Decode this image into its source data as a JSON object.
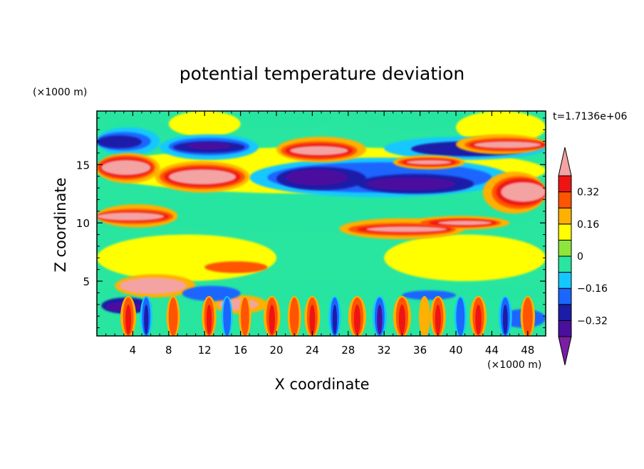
{
  "chart_data": {
    "type": "heatmap",
    "title": "potential temperature deviation",
    "xlabel": "X coordinate",
    "ylabel": "Z coordinate",
    "x_unit": "(×1000 m)",
    "y_unit": "(×1000 m)",
    "time_label": "t=1.7136e+06",
    "xlim": [
      0,
      50
    ],
    "ylim": [
      0.3,
      19.6
    ],
    "x_ticks": [
      4,
      8,
      12,
      16,
      20,
      24,
      28,
      32,
      36,
      40,
      44,
      48
    ],
    "x_tick_labels": [
      "4",
      "8",
      "12",
      "16",
      "20",
      "24",
      "28",
      "32",
      "36",
      "40",
      "44",
      "48"
    ],
    "y_ticks": [
      5,
      10,
      15
    ],
    "y_tick_labels": [
      "5",
      "10",
      "15"
    ],
    "colorbar": {
      "levels": [
        -0.4,
        -0.32,
        -0.24,
        -0.16,
        -0.08,
        0,
        0.08,
        0.16,
        0.24,
        0.32,
        0.4
      ],
      "colors": [
        "#7a1fa2",
        "#4b0f9e",
        "#1c1ca8",
        "#1a66ff",
        "#14c8ff",
        "#28e5a0",
        "#8ee63a",
        "#ffff00",
        "#ffb000",
        "#ff5500",
        "#ee1414",
        "#f4a3a3"
      ],
      "labels": [
        "0.32",
        "0.16",
        "0",
        "−0.16",
        "−0.32"
      ],
      "label_values": [
        0.32,
        0.16,
        0,
        -0.16,
        -0.32
      ]
    },
    "base_color": "#28e5a0",
    "regions": [
      {
        "v": 0.08,
        "x0": 0,
        "x1": 50,
        "y0": 12.5,
        "y1": 16.5
      },
      {
        "v": 0.08,
        "x0": 0,
        "x1": 20,
        "y0": 5,
        "y1": 9
      },
      {
        "v": 0.08,
        "x0": 32,
        "x1": 50,
        "y0": 5,
        "y1": 9
      },
      {
        "v": -0.08,
        "x0": 0,
        "x1": 50,
        "y0": 9.3,
        "y1": 12.4
      },
      {
        "v": -0.08,
        "x0": 0,
        "x1": 8,
        "y0": 17,
        "y1": 18.8
      },
      {
        "v": -0.08,
        "x0": 16,
        "x1": 26,
        "y0": 18.2,
        "y1": 19.6
      },
      {
        "v": -0.08,
        "x0": 30,
        "x1": 43,
        "y0": 18.0,
        "y1": 19.6
      },
      {
        "v": 0.08,
        "x0": 8,
        "x1": 16,
        "y0": 17.4,
        "y1": 19.6
      },
      {
        "v": 0.08,
        "x0": 40,
        "x1": 50,
        "y0": 16.8,
        "y1": 19.6
      },
      {
        "v": -0.16,
        "x0": 17,
        "x1": 46,
        "y0": 12.2,
        "y1": 15.6
      },
      {
        "v": -0.16,
        "x0": 0,
        "x1": 7,
        "y0": 15.8,
        "y1": 18.2
      },
      {
        "v": -0.16,
        "x0": 7,
        "x1": 18,
        "y0": 15.4,
        "y1": 17.6
      },
      {
        "v": -0.16,
        "x0": 32,
        "x1": 50,
        "y0": 15.4,
        "y1": 17.4
      },
      {
        "v": -0.24,
        "x0": 19,
        "x1": 44,
        "y0": 12.6,
        "y1": 15.2
      },
      {
        "v": -0.24,
        "x0": 0,
        "x1": 6,
        "y0": 16.2,
        "y1": 17.8
      },
      {
        "v": -0.24,
        "x0": 8,
        "x1": 17,
        "y0": 15.8,
        "y1": 17.3
      },
      {
        "v": -0.32,
        "x0": 20,
        "x1": 30,
        "y0": 12.8,
        "y1": 14.8
      },
      {
        "v": -0.32,
        "x0": 29,
        "x1": 42,
        "y0": 12.5,
        "y1": 14.2
      },
      {
        "v": -0.32,
        "x0": 0,
        "x1": 5,
        "y0": 16.4,
        "y1": 17.5
      },
      {
        "v": -0.32,
        "x0": 8.5,
        "x1": 16.5,
        "y0": 16.0,
        "y1": 17.0
      },
      {
        "v": -0.32,
        "x0": 35,
        "x1": 48,
        "y0": 15.7,
        "y1": 17.0
      },
      {
        "v": -0.4,
        "x0": 21,
        "x1": 28,
        "y0": 13.2,
        "y1": 14.6
      },
      {
        "v": -0.4,
        "x0": 30,
        "x1": 40,
        "y0": 12.8,
        "y1": 13.9
      },
      {
        "v": -0.4,
        "x0": 10,
        "x1": 15,
        "y0": 16.3,
        "y1": 16.9
      },
      {
        "v": 0.16,
        "x0": 0,
        "x1": 7,
        "y0": 13.4,
        "y1": 16.0
      },
      {
        "v": 0.16,
        "x0": 6.5,
        "x1": 17,
        "y0": 12.6,
        "y1": 15.3
      },
      {
        "v": 0.16,
        "x0": 20,
        "x1": 30,
        "y0": 15.2,
        "y1": 17.4
      },
      {
        "v": 0.16,
        "x0": 33,
        "x1": 41,
        "y0": 14.6,
        "y1": 15.8
      },
      {
        "v": 0.16,
        "x0": 40,
        "x1": 50,
        "y0": 15.9,
        "y1": 17.6
      },
      {
        "v": 0.16,
        "x0": 43,
        "x1": 50,
        "y0": 10.8,
        "y1": 14.4
      },
      {
        "v": 0.16,
        "x0": 0,
        "x1": 9,
        "y0": 9.6,
        "y1": 11.6
      },
      {
        "v": 0.16,
        "x0": 27,
        "x1": 41,
        "y0": 8.6,
        "y1": 10.4
      },
      {
        "v": 0.16,
        "x0": 35,
        "x1": 46,
        "y0": 9.4,
        "y1": 10.6
      },
      {
        "v": 0.24,
        "x0": 0,
        "x1": 6.5,
        "y0": 13.7,
        "y1": 15.8
      },
      {
        "v": 0.24,
        "x0": 7,
        "x1": 16.5,
        "y0": 12.9,
        "y1": 15.0
      },
      {
        "v": 0.24,
        "x0": 20.5,
        "x1": 29,
        "y0": 15.4,
        "y1": 17.0
      },
      {
        "v": 0.24,
        "x0": 33.5,
        "x1": 40.5,
        "y0": 14.8,
        "y1": 15.6
      },
      {
        "v": 0.24,
        "x0": 41,
        "x1": 50,
        "y0": 16.1,
        "y1": 17.3
      },
      {
        "v": 0.24,
        "x0": 44,
        "x1": 50,
        "y0": 11.2,
        "y1": 14.0
      },
      {
        "v": 0.24,
        "x0": 0,
        "x1": 8.5,
        "y0": 9.9,
        "y1": 11.2
      },
      {
        "v": 0.24,
        "x0": 28,
        "x1": 40,
        "y0": 8.9,
        "y1": 10.0
      },
      {
        "v": 0.24,
        "x0": 36,
        "x1": 45,
        "y0": 9.6,
        "y1": 10.4
      },
      {
        "v": 0.32,
        "x0": 0.3,
        "x1": 6.2,
        "y0": 13.9,
        "y1": 15.6
      },
      {
        "v": 0.32,
        "x0": 7.5,
        "x1": 16,
        "y0": 13.1,
        "y1": 14.8
      },
      {
        "v": 0.32,
        "x0": 21,
        "x1": 28.5,
        "y0": 15.6,
        "y1": 16.8
      },
      {
        "v": 0.32,
        "x0": 34,
        "x1": 40,
        "y0": 14.9,
        "y1": 15.5
      },
      {
        "v": 0.32,
        "x0": 41.5,
        "x1": 50,
        "y0": 16.3,
        "y1": 17.1
      },
      {
        "v": 0.32,
        "x0": 44.5,
        "x1": 50,
        "y0": 11.5,
        "y1": 13.8
      },
      {
        "v": 0.32,
        "x0": 0,
        "x1": 8,
        "y0": 10.1,
        "y1": 11.0
      },
      {
        "v": 0.32,
        "x0": 29,
        "x1": 39.5,
        "y0": 9.1,
        "y1": 9.8
      },
      {
        "v": 0.32,
        "x0": 37,
        "x1": 44.5,
        "y0": 9.7,
        "y1": 10.3
      },
      {
        "v": 0.4,
        "x0": 0.5,
        "x1": 6,
        "y0": 14.1,
        "y1": 15.4
      },
      {
        "v": 0.4,
        "x0": 8,
        "x1": 15.5,
        "y0": 13.3,
        "y1": 14.6
      },
      {
        "v": 0.4,
        "x0": 21.5,
        "x1": 28,
        "y0": 15.8,
        "y1": 16.6
      },
      {
        "v": 0.4,
        "x0": 34.5,
        "x1": 39.5,
        "y0": 15.0,
        "y1": 15.4
      },
      {
        "v": 0.4,
        "x0": 42,
        "x1": 49.5,
        "y0": 16.4,
        "y1": 17.0
      },
      {
        "v": 0.4,
        "x0": 45,
        "x1": 50,
        "y0": 11.8,
        "y1": 13.5
      },
      {
        "v": 0.4,
        "x0": 0,
        "x1": 7.5,
        "y0": 10.2,
        "y1": 10.9
      },
      {
        "v": 0.4,
        "x0": 30,
        "x1": 39,
        "y0": 9.2,
        "y1": 9.7
      },
      {
        "v": 0.4,
        "x0": 38,
        "x1": 44,
        "y0": 9.8,
        "y1": 10.2
      },
      {
        "v": 0.4,
        "x0": 13,
        "x1": 18,
        "y0": 5.9,
        "y1": 6.5
      },
      {
        "v": 0.24,
        "x0": 12,
        "x1": 19,
        "y0": 5.7,
        "y1": 6.7
      },
      {
        "v": -0.08,
        "x0": 0,
        "x1": 50,
        "y0": 3.0,
        "y1": 5.0
      },
      {
        "v": 0.16,
        "x0": 2,
        "x1": 11,
        "y0": 3.6,
        "y1": 5.6
      },
      {
        "v": 0.4,
        "x0": 2.5,
        "x1": 10,
        "y0": 3.9,
        "y1": 5.3
      },
      {
        "v": 0.16,
        "x0": 13,
        "x1": 19,
        "y0": 2.2,
        "y1": 3.8
      },
      {
        "v": 0.4,
        "x0": 13.5,
        "x1": 18,
        "y0": 2.5,
        "y1": 3.5
      },
      {
        "v": -0.24,
        "x0": 9.5,
        "x1": 16,
        "y0": 3.3,
        "y1": 4.6
      },
      {
        "v": -0.32,
        "x0": 0.5,
        "x1": 6,
        "y0": 2.2,
        "y1": 3.6
      },
      {
        "v": -0.4,
        "x0": 1,
        "x1": 5,
        "y0": 2.4,
        "y1": 3.2
      },
      {
        "v": -0.24,
        "x0": 34,
        "x1": 40,
        "y0": 3.4,
        "y1": 4.2
      },
      {
        "v": -0.24,
        "x0": 45,
        "x1": 50,
        "y0": 1.0,
        "y1": 2.6
      }
    ],
    "plumes": [
      {
        "x": 3.5,
        "w": 1.4,
        "v": 0.32
      },
      {
        "x": 5.5,
        "w": 1.1,
        "v": -0.32
      },
      {
        "x": 8.5,
        "w": 1.2,
        "v": 0.24
      },
      {
        "x": 12.5,
        "w": 1.3,
        "v": 0.32
      },
      {
        "x": 14.5,
        "w": 1.0,
        "v": -0.24
      },
      {
        "x": 16.5,
        "w": 1.1,
        "v": 0.24
      },
      {
        "x": 19.5,
        "w": 1.5,
        "v": 0.32
      },
      {
        "x": 22,
        "w": 1.2,
        "v": 0.24
      },
      {
        "x": 24,
        "w": 1.4,
        "v": 0.32
      },
      {
        "x": 26.5,
        "w": 1.1,
        "v": -0.32
      },
      {
        "x": 29,
        "w": 1.6,
        "v": 0.32
      },
      {
        "x": 31.5,
        "w": 1.3,
        "v": -0.4
      },
      {
        "x": 34,
        "w": 1.6,
        "v": 0.32
      },
      {
        "x": 36.5,
        "w": 1.0,
        "v": 0.16
      },
      {
        "x": 38,
        "w": 1.4,
        "v": 0.32
      },
      {
        "x": 40.5,
        "w": 1.1,
        "v": -0.24
      },
      {
        "x": 42.5,
        "w": 1.5,
        "v": 0.32
      },
      {
        "x": 45.5,
        "w": 1.2,
        "v": -0.32
      },
      {
        "x": 48,
        "w": 1.3,
        "v": 0.24
      }
    ]
  }
}
